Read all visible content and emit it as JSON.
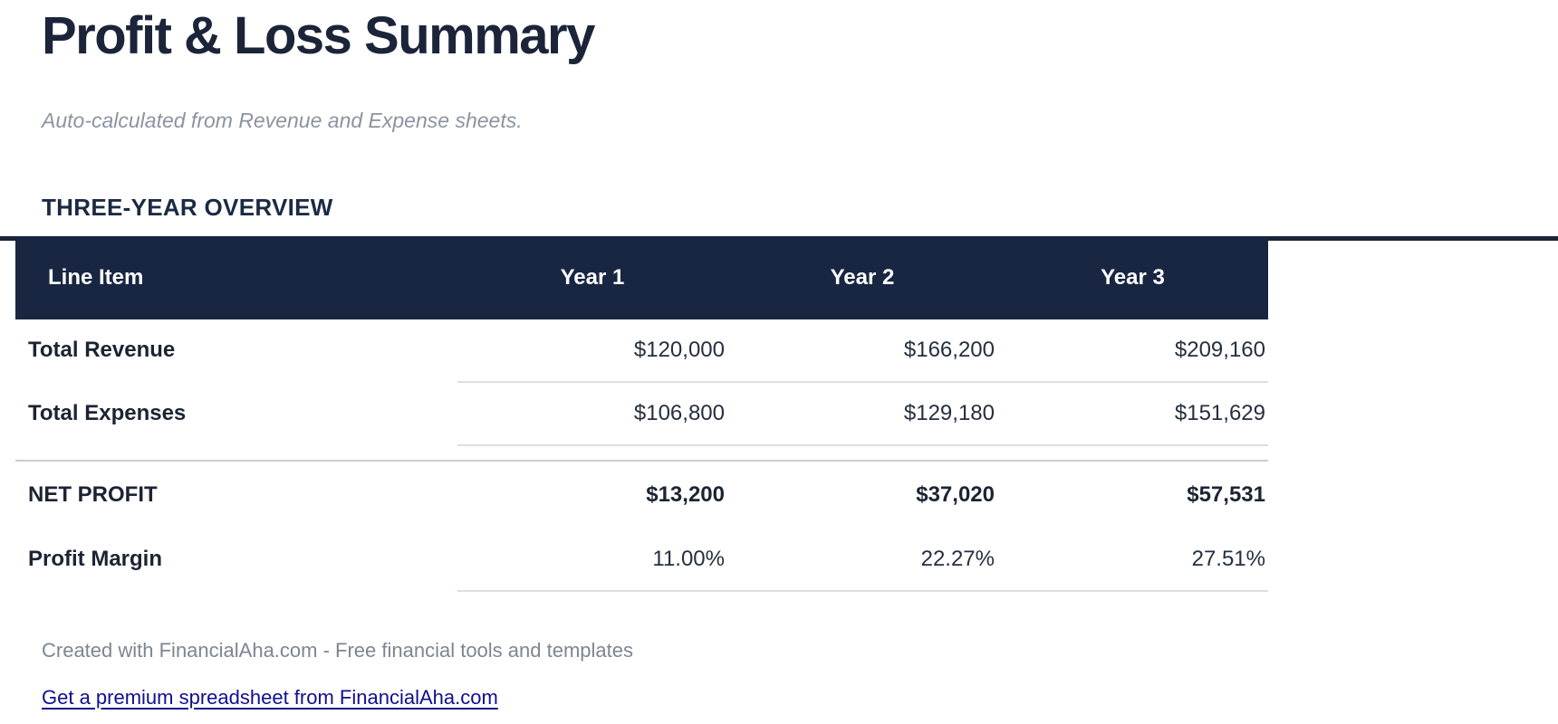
{
  "page": {
    "title": "Profit & Loss Summary",
    "subtitle": "Auto-calculated from Revenue and Expense sheets.",
    "section_heading": "THREE-YEAR OVERVIEW"
  },
  "table": {
    "columns": [
      "Line Item",
      "Year 1",
      "Year 2",
      "Year 3"
    ],
    "rows": [
      {
        "label": "Total Revenue",
        "values": [
          "$120,000",
          "$166,200",
          "$209,160"
        ],
        "emphasis": false,
        "underline": true
      },
      {
        "label": "Total Expenses",
        "values": [
          "$106,800",
          "$129,180",
          "$151,629"
        ],
        "emphasis": false,
        "underline": true
      },
      {
        "label": "NET PROFIT",
        "values": [
          "$13,200",
          "$37,020",
          "$57,531"
        ],
        "emphasis": true,
        "underline": false
      },
      {
        "label": "Profit Margin",
        "values": [
          "11.00%",
          "22.27%",
          "27.51%"
        ],
        "emphasis": false,
        "underline": true
      }
    ],
    "divider_after_row_index": 1
  },
  "footer": {
    "credit": "Created with FinancialAha.com - Free financial tools and templates",
    "link_text": "Get a premium spreadsheet from FinancialAha.com"
  },
  "colors": {
    "header_navy": "#192642",
    "title_navy": "#1b2438",
    "muted_gray": "#8a94a1",
    "footer_gray": "#7c8692",
    "link_blue": "#10108e",
    "row_separator": "#dcdfe4",
    "section_divider": "#c7ccd4"
  }
}
